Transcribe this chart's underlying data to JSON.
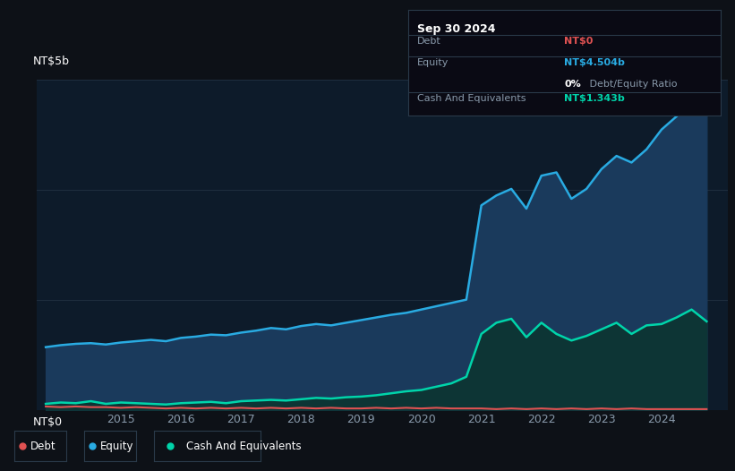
{
  "bg_color": "#0d1117",
  "plot_bg_color": "#0d1b2a",
  "grid_color": "#1e2d3d",
  "title_label": "NT$5b",
  "zero_label": "NT$0",
  "ylim": [
    0,
    5.0
  ],
  "equity_color": "#29abe2",
  "debt_color": "#e05252",
  "cash_color": "#00d4aa",
  "equity_fill_color": "#1a3a5c",
  "cash_fill_color": "#0d3535",
  "legend_bg": "#111827",
  "legend_border": "#2a3a4a",
  "tooltip_bg": "#0a0a14",
  "tooltip_border": "#2a3a4a",
  "equity_data": [
    [
      2013.75,
      0.95
    ],
    [
      2014.0,
      0.98
    ],
    [
      2014.25,
      1.0
    ],
    [
      2014.5,
      1.01
    ],
    [
      2014.75,
      0.99
    ],
    [
      2015.0,
      1.02
    ],
    [
      2015.25,
      1.04
    ],
    [
      2015.5,
      1.06
    ],
    [
      2015.75,
      1.04
    ],
    [
      2016.0,
      1.09
    ],
    [
      2016.25,
      1.11
    ],
    [
      2016.5,
      1.14
    ],
    [
      2016.75,
      1.13
    ],
    [
      2017.0,
      1.17
    ],
    [
      2017.25,
      1.2
    ],
    [
      2017.5,
      1.24
    ],
    [
      2017.75,
      1.22
    ],
    [
      2018.0,
      1.27
    ],
    [
      2018.25,
      1.3
    ],
    [
      2018.5,
      1.28
    ],
    [
      2018.75,
      1.32
    ],
    [
      2019.0,
      1.36
    ],
    [
      2019.25,
      1.4
    ],
    [
      2019.5,
      1.44
    ],
    [
      2019.75,
      1.47
    ],
    [
      2020.0,
      1.52
    ],
    [
      2020.25,
      1.57
    ],
    [
      2020.5,
      1.62
    ],
    [
      2020.75,
      1.67
    ],
    [
      2021.0,
      3.1
    ],
    [
      2021.25,
      3.25
    ],
    [
      2021.5,
      3.35
    ],
    [
      2021.75,
      3.05
    ],
    [
      2022.0,
      3.55
    ],
    [
      2022.25,
      3.6
    ],
    [
      2022.5,
      3.2
    ],
    [
      2022.75,
      3.35
    ],
    [
      2023.0,
      3.65
    ],
    [
      2023.25,
      3.85
    ],
    [
      2023.5,
      3.75
    ],
    [
      2023.75,
      3.95
    ],
    [
      2024.0,
      4.25
    ],
    [
      2024.25,
      4.45
    ],
    [
      2024.5,
      4.65
    ],
    [
      2024.75,
      4.5
    ]
  ],
  "cash_data": [
    [
      2013.75,
      0.09
    ],
    [
      2014.0,
      0.11
    ],
    [
      2014.25,
      0.1
    ],
    [
      2014.5,
      0.13
    ],
    [
      2014.75,
      0.09
    ],
    [
      2015.0,
      0.11
    ],
    [
      2015.25,
      0.1
    ],
    [
      2015.5,
      0.09
    ],
    [
      2015.75,
      0.08
    ],
    [
      2016.0,
      0.1
    ],
    [
      2016.25,
      0.11
    ],
    [
      2016.5,
      0.12
    ],
    [
      2016.75,
      0.1
    ],
    [
      2017.0,
      0.13
    ],
    [
      2017.25,
      0.14
    ],
    [
      2017.5,
      0.15
    ],
    [
      2017.75,
      0.14
    ],
    [
      2018.0,
      0.16
    ],
    [
      2018.25,
      0.18
    ],
    [
      2018.5,
      0.17
    ],
    [
      2018.75,
      0.19
    ],
    [
      2019.0,
      0.2
    ],
    [
      2019.25,
      0.22
    ],
    [
      2019.5,
      0.25
    ],
    [
      2019.75,
      0.28
    ],
    [
      2020.0,
      0.3
    ],
    [
      2020.25,
      0.35
    ],
    [
      2020.5,
      0.4
    ],
    [
      2020.75,
      0.5
    ],
    [
      2021.0,
      1.15
    ],
    [
      2021.25,
      1.32
    ],
    [
      2021.5,
      1.38
    ],
    [
      2021.75,
      1.1
    ],
    [
      2022.0,
      1.32
    ],
    [
      2022.25,
      1.15
    ],
    [
      2022.5,
      1.05
    ],
    [
      2022.75,
      1.12
    ],
    [
      2023.0,
      1.22
    ],
    [
      2023.25,
      1.32
    ],
    [
      2023.5,
      1.15
    ],
    [
      2023.75,
      1.28
    ],
    [
      2024.0,
      1.3
    ],
    [
      2024.25,
      1.4
    ],
    [
      2024.5,
      1.52
    ],
    [
      2024.75,
      1.34
    ]
  ],
  "debt_data": [
    [
      2013.75,
      0.05
    ],
    [
      2014.0,
      0.04
    ],
    [
      2014.25,
      0.05
    ],
    [
      2014.5,
      0.04
    ],
    [
      2014.75,
      0.04
    ],
    [
      2015.0,
      0.03
    ],
    [
      2015.25,
      0.04
    ],
    [
      2015.5,
      0.03
    ],
    [
      2015.75,
      0.02
    ],
    [
      2016.0,
      0.03
    ],
    [
      2016.25,
      0.02
    ],
    [
      2016.5,
      0.03
    ],
    [
      2016.75,
      0.02
    ],
    [
      2017.0,
      0.03
    ],
    [
      2017.25,
      0.02
    ],
    [
      2017.5,
      0.03
    ],
    [
      2017.75,
      0.02
    ],
    [
      2018.0,
      0.03
    ],
    [
      2018.25,
      0.02
    ],
    [
      2018.5,
      0.03
    ],
    [
      2018.75,
      0.02
    ],
    [
      2019.0,
      0.02
    ],
    [
      2019.25,
      0.03
    ],
    [
      2019.5,
      0.02
    ],
    [
      2019.75,
      0.03
    ],
    [
      2020.0,
      0.02
    ],
    [
      2020.25,
      0.03
    ],
    [
      2020.5,
      0.02
    ],
    [
      2020.75,
      0.02
    ],
    [
      2021.0,
      0.02
    ],
    [
      2021.25,
      0.01
    ],
    [
      2021.5,
      0.02
    ],
    [
      2021.75,
      0.01
    ],
    [
      2022.0,
      0.02
    ],
    [
      2022.25,
      0.01
    ],
    [
      2022.5,
      0.02
    ],
    [
      2022.75,
      0.01
    ],
    [
      2023.0,
      0.02
    ],
    [
      2023.25,
      0.01
    ],
    [
      2023.5,
      0.02
    ],
    [
      2023.75,
      0.01
    ],
    [
      2024.0,
      0.01
    ],
    [
      2024.25,
      0.01
    ],
    [
      2024.5,
      0.01
    ],
    [
      2024.75,
      0.01
    ]
  ],
  "tooltip_date": "Sep 30 2024",
  "tooltip_debt_label": "Debt",
  "tooltip_debt_value": "NT$0",
  "tooltip_equity_label": "Equity",
  "tooltip_equity_value": "NT$4.504b",
  "tooltip_ratio": "0%",
  "tooltip_ratio_label": " Debt/Equity Ratio",
  "tooltip_cash_label": "Cash And Equivalents",
  "tooltip_cash_value": "NT$1.343b",
  "legend_items": [
    "Debt",
    "Equity",
    "Cash And Equivalents"
  ]
}
